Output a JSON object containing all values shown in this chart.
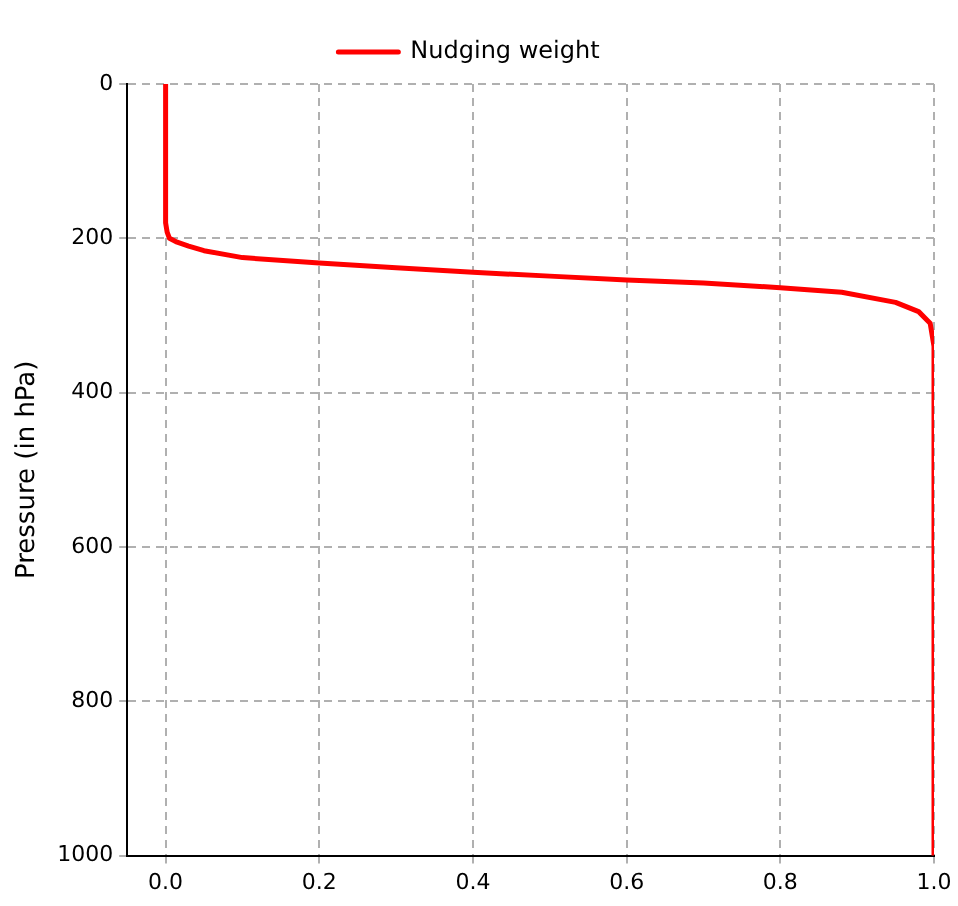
{
  "chart_data": {
    "type": "line",
    "ylabel": "Pressure (in hPa)",
    "series": [
      {
        "name": "Nudging weight",
        "color": "#ff0000",
        "x": [
          0,
          0,
          0.002,
          0.005,
          0.015,
          0.03,
          0.05,
          0.1,
          0.2,
          0.3,
          0.4,
          0.5,
          0.6,
          0.7,
          0.8,
          0.88,
          0.95,
          0.98,
          0.995,
          1,
          1
        ],
        "values": [
          0,
          180,
          192,
          200,
          205,
          210,
          216,
          225,
          232,
          238,
          244,
          249,
          254,
          258,
          264,
          270,
          283,
          295,
          310,
          340,
          1000
        ]
      }
    ],
    "xlim": [
      -0.05,
      1.0
    ],
    "xticks": [
      {
        "value": 0,
        "label": "0.0"
      },
      0.2,
      0.4,
      0.6,
      0.8,
      {
        "value": 1,
        "label": "1.0"
      }
    ],
    "ylim": [
      1000,
      0
    ],
    "yticks": [
      0,
      200,
      400,
      600,
      800,
      1000
    ],
    "grid": true,
    "legend": "top",
    "marker": "none",
    "line_style": "solid"
  }
}
